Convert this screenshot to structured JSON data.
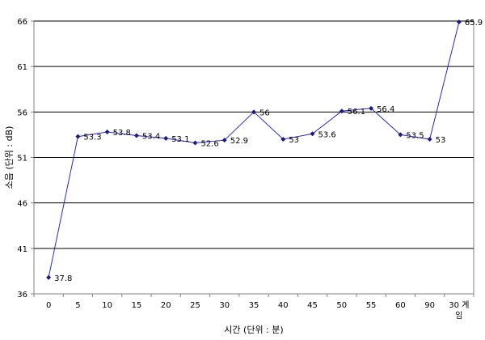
{
  "chart_data": {
    "type": "line",
    "xlabel": "시간 (단위 : 분)",
    "ylabel": "소음 (단위 : dB)",
    "ylim": [
      36,
      66
    ],
    "yticks": [
      "36",
      "41",
      "46",
      "51",
      "56",
      "61",
      "66"
    ],
    "grid": "horizontal",
    "colors": {
      "line": "#2b2bb0",
      "marker": "#1a1a80",
      "grid": "#000000"
    },
    "categories": [
      "0",
      "5",
      "10",
      "15",
      "20",
      "25",
      "30",
      "35",
      "40",
      "45",
      "50",
      "55",
      "60",
      "90",
      "30 계 임"
    ],
    "category_lines": [
      [
        "0"
      ],
      [
        "5"
      ],
      [
        "10"
      ],
      [
        "15"
      ],
      [
        "20"
      ],
      [
        "25"
      ],
      [
        "30"
      ],
      [
        "35"
      ],
      [
        "40"
      ],
      [
        "45"
      ],
      [
        "50"
      ],
      [
        "55"
      ],
      [
        "60"
      ],
      [
        "90"
      ],
      [
        "30 계",
        "임"
      ]
    ],
    "series": [
      {
        "values": [
          37.8,
          53.3,
          53.8,
          53.4,
          53.1,
          52.6,
          52.9,
          56,
          53,
          53.6,
          56.1,
          56.4,
          53.5,
          53,
          65.9
        ],
        "labels": [
          "37.8",
          "53.3",
          "53.8",
          "53.4",
          "53.1",
          "52.6",
          "52.9",
          "56",
          "53",
          "53.6",
          "56.1",
          "56.4",
          "53.5",
          "53",
          "65.9"
        ]
      }
    ]
  }
}
